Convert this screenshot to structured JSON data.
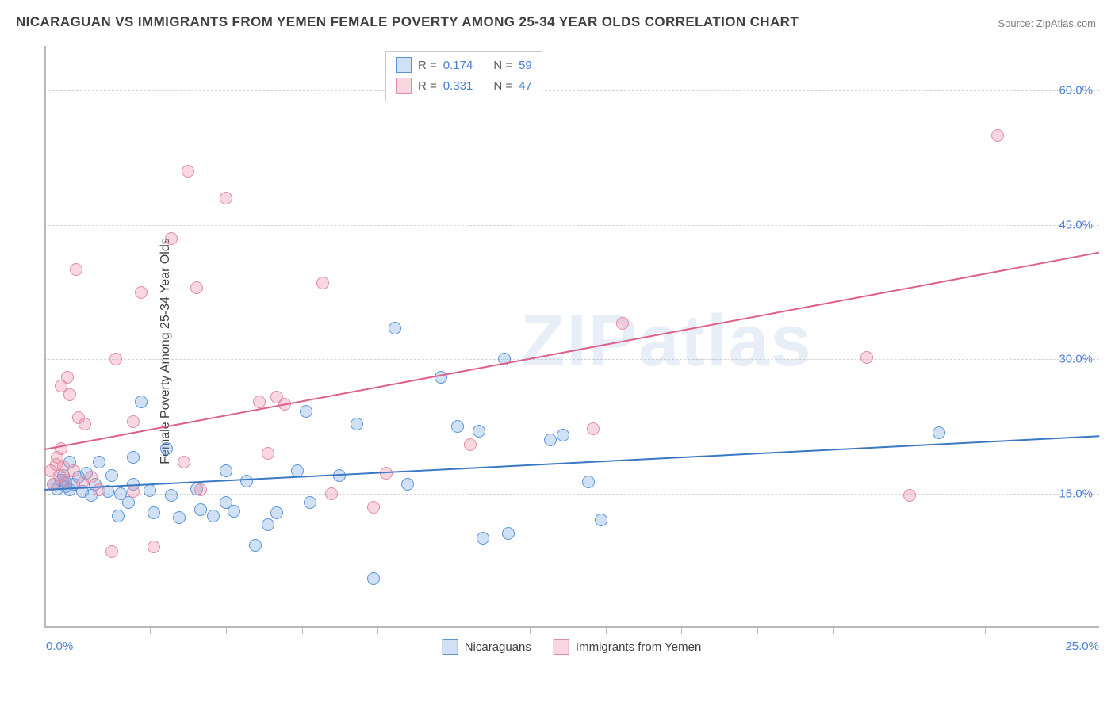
{
  "title": "NICARAGUAN VS IMMIGRANTS FROM YEMEN FEMALE POVERTY AMONG 25-34 YEAR OLDS CORRELATION CHART",
  "source_label": "Source: ZipAtlas.com",
  "y_axis_label": "Female Poverty Among 25-34 Year Olds",
  "watermark": "ZIPatlas",
  "chart": {
    "type": "scatter",
    "background_color": "#ffffff",
    "grid_color": "#d5d5d5",
    "axis_color": "#b8b8b8",
    "xlim": [
      0,
      25
    ],
    "ylim": [
      0,
      65
    ],
    "x_ticks": [
      0,
      25
    ],
    "x_tick_labels": [
      "0.0%",
      "25.0%"
    ],
    "x_minor_tick_positions": [
      2.5,
      4.3,
      6.1,
      7.9,
      9.7,
      11.5,
      13.3,
      15.1,
      16.9,
      18.7,
      20.5,
      22.3
    ],
    "y_ticks": [
      15,
      30,
      45,
      60
    ],
    "y_tick_labels": [
      "15.0%",
      "30.0%",
      "45.0%",
      "60.0%"
    ],
    "series": [
      {
        "name": "Nicaraguans",
        "label": "Nicaraguans",
        "fill_color": "rgba(120,170,230,0.35)",
        "stroke_color": "#5b94d6",
        "line_color": "#3b78c4",
        "R": 0.174,
        "N": 59,
        "trend": {
          "x1": 0,
          "y1": 15.5,
          "x2": 25,
          "y2": 21.5
        },
        "points": [
          [
            0.2,
            16
          ],
          [
            0.3,
            15.5
          ],
          [
            0.4,
            16.5
          ],
          [
            0.45,
            17
          ],
          [
            0.5,
            15.8
          ],
          [
            0.5,
            16.2
          ],
          [
            0.6,
            15.4
          ],
          [
            0.6,
            18.5
          ],
          [
            0.7,
            16
          ],
          [
            0.8,
            16.8
          ],
          [
            0.9,
            15.2
          ],
          [
            1.0,
            17.3
          ],
          [
            1.1,
            14.8
          ],
          [
            1.2,
            16
          ],
          [
            1.3,
            18.5
          ],
          [
            1.5,
            15.2
          ],
          [
            1.6,
            17
          ],
          [
            1.75,
            12.5
          ],
          [
            1.8,
            15
          ],
          [
            2.0,
            14
          ],
          [
            2.1,
            16
          ],
          [
            2.1,
            19
          ],
          [
            2.3,
            25.2
          ],
          [
            2.5,
            15.3
          ],
          [
            2.6,
            12.8
          ],
          [
            2.9,
            20
          ],
          [
            3.0,
            14.8
          ],
          [
            3.2,
            12.3
          ],
          [
            3.6,
            15.5
          ],
          [
            3.7,
            13.2
          ],
          [
            4.0,
            12.5
          ],
          [
            4.3,
            17.5
          ],
          [
            4.3,
            14
          ],
          [
            4.5,
            13
          ],
          [
            4.8,
            16.4
          ],
          [
            5.0,
            9.2
          ],
          [
            5.3,
            11.5
          ],
          [
            5.5,
            12.8
          ],
          [
            6.0,
            17.5
          ],
          [
            6.2,
            24.2
          ],
          [
            6.3,
            14
          ],
          [
            7.0,
            17
          ],
          [
            7.4,
            22.8
          ],
          [
            7.8,
            5.5
          ],
          [
            8.3,
            33.5
          ],
          [
            8.6,
            16
          ],
          [
            9.4,
            28
          ],
          [
            9.8,
            22.5
          ],
          [
            10.3,
            22
          ],
          [
            10.4,
            10
          ],
          [
            10.9,
            30
          ],
          [
            11.0,
            10.5
          ],
          [
            12.0,
            21
          ],
          [
            12.3,
            21.5
          ],
          [
            12.9,
            16.3
          ],
          [
            13.2,
            12
          ],
          [
            21.2,
            21.8
          ]
        ]
      },
      {
        "name": "Immigrants from Yemen",
        "label": "Immigrants from Yemen",
        "fill_color": "rgba(235,140,165,0.35)",
        "stroke_color": "#e08ca3",
        "line_color": "#de5f88",
        "R": 0.331,
        "N": 47,
        "trend": {
          "x1": 0,
          "y1": 20,
          "x2": 25,
          "y2": 42
        },
        "points": [
          [
            0.15,
            17.5
          ],
          [
            0.2,
            16
          ],
          [
            0.28,
            18.2
          ],
          [
            0.3,
            19
          ],
          [
            0.35,
            17
          ],
          [
            0.4,
            27
          ],
          [
            0.4,
            20
          ],
          [
            0.45,
            18
          ],
          [
            0.5,
            16.5
          ],
          [
            0.55,
            28
          ],
          [
            0.6,
            26
          ],
          [
            0.7,
            17.5
          ],
          [
            0.75,
            40
          ],
          [
            0.8,
            23.5
          ],
          [
            0.9,
            16.2
          ],
          [
            0.95,
            22.8
          ],
          [
            1.1,
            16.8
          ],
          [
            1.3,
            15.4
          ],
          [
            1.6,
            8.5
          ],
          [
            1.7,
            30
          ],
          [
            2.1,
            15.2
          ],
          [
            2.1,
            23
          ],
          [
            2.3,
            37.5
          ],
          [
            2.6,
            9
          ],
          [
            3.0,
            43.5
          ],
          [
            3.3,
            18.5
          ],
          [
            3.4,
            51
          ],
          [
            3.6,
            38
          ],
          [
            3.7,
            15.4
          ],
          [
            4.3,
            48
          ],
          [
            5.1,
            25.2
          ],
          [
            5.3,
            19.5
          ],
          [
            5.5,
            25.8
          ],
          [
            5.7,
            25
          ],
          [
            6.6,
            38.5
          ],
          [
            6.8,
            15
          ],
          [
            7.8,
            13.5
          ],
          [
            8.1,
            17.3
          ],
          [
            10.1,
            20.5
          ],
          [
            13.0,
            22.2
          ],
          [
            13.7,
            34
          ],
          [
            19.5,
            30.2
          ],
          [
            20.5,
            14.8
          ],
          [
            22.6,
            55
          ]
        ]
      }
    ]
  },
  "legend_stats": {
    "r_label": "R =",
    "n_label": "N ="
  }
}
